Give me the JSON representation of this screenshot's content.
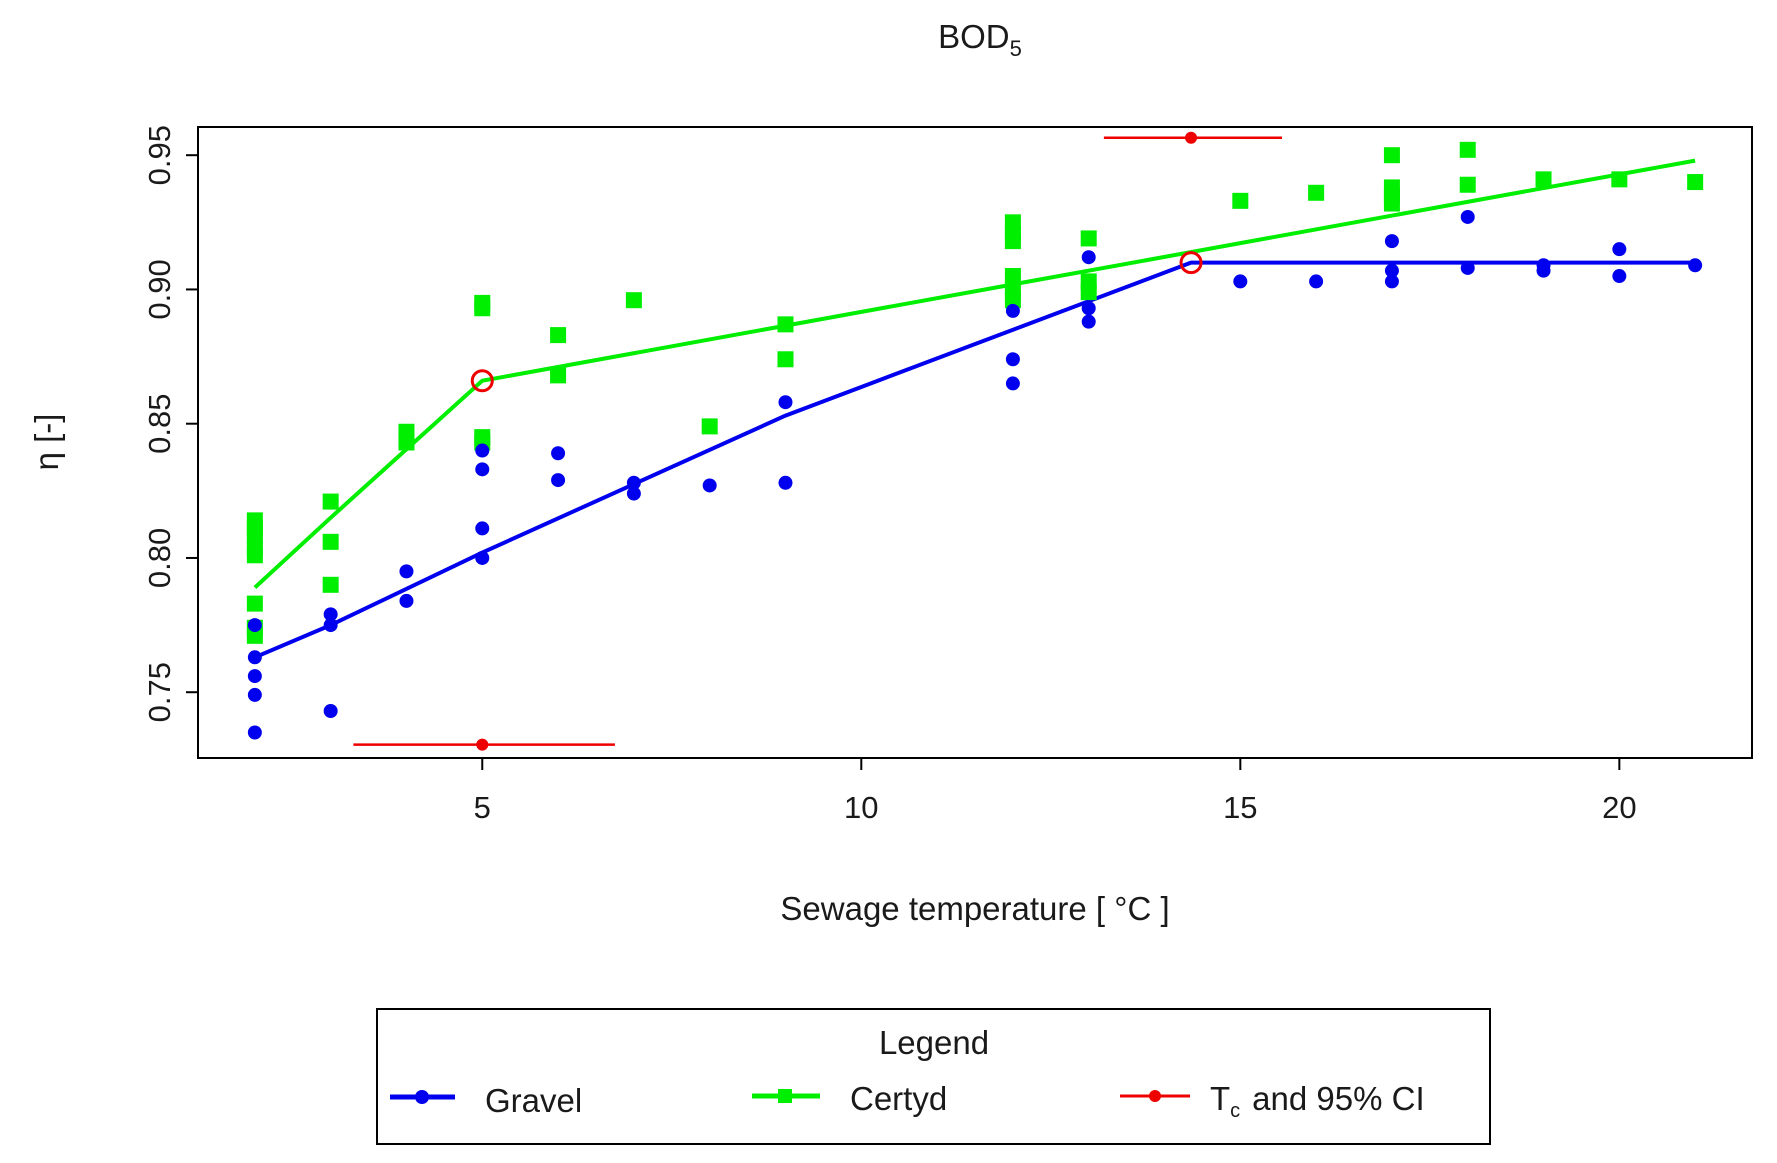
{
  "colors": {
    "gravel": "#0000ee",
    "certyd": "#00ee00",
    "tc": "#ee0000",
    "frame": "#000000"
  },
  "chart_data": {
    "type": "scatter",
    "title": "BOD",
    "title_sub": "5",
    "xlabel": "Sewage temperature [ °C ]",
    "ylabel": "η [-]",
    "xlim": [
      1.25,
      21.75
    ],
    "ylim": [
      0.7255,
      0.9605
    ],
    "x_ticks": [
      5,
      10,
      15,
      20
    ],
    "x_tick_labels": [
      "5",
      "10",
      "15",
      "20"
    ],
    "y_ticks": [
      0.75,
      0.8,
      0.85,
      0.9,
      0.95
    ],
    "y_tick_labels": [
      "0.75",
      "0.80",
      "0.85",
      "0.90",
      "0.95"
    ],
    "series": [
      {
        "name": "Gravel",
        "marker": "circle",
        "color": "#0000ee",
        "points": [
          [
            2,
            0.735
          ],
          [
            2,
            0.749
          ],
          [
            2,
            0.756
          ],
          [
            2,
            0.763
          ],
          [
            2,
            0.775
          ],
          [
            3,
            0.743
          ],
          [
            3,
            0.775
          ],
          [
            3,
            0.779
          ],
          [
            4,
            0.784
          ],
          [
            4,
            0.795
          ],
          [
            5,
            0.8
          ],
          [
            5,
            0.811
          ],
          [
            5,
            0.833
          ],
          [
            5,
            0.84
          ],
          [
            6,
            0.829
          ],
          [
            6,
            0.839
          ],
          [
            7,
            0.824
          ],
          [
            7,
            0.828
          ],
          [
            8,
            0.827
          ],
          [
            9,
            0.828
          ],
          [
            9,
            0.858
          ],
          [
            12,
            0.865
          ],
          [
            12,
            0.874
          ],
          [
            12,
            0.892
          ],
          [
            13,
            0.888
          ],
          [
            13,
            0.893
          ],
          [
            13,
            0.912
          ],
          [
            15,
            0.903
          ],
          [
            16,
            0.903
          ],
          [
            17,
            0.903
          ],
          [
            17,
            0.907
          ],
          [
            17,
            0.918
          ],
          [
            18,
            0.908
          ],
          [
            18,
            0.927
          ],
          [
            19,
            0.907
          ],
          [
            19,
            0.909
          ],
          [
            20,
            0.905
          ],
          [
            20,
            0.915
          ],
          [
            21,
            0.909
          ]
        ],
        "fit": [
          [
            2,
            0.763
          ],
          [
            3,
            0.775
          ],
          [
            5,
            0.802
          ],
          [
            9,
            0.853
          ],
          [
            14.35,
            0.91
          ],
          [
            21,
            0.91
          ]
        ]
      },
      {
        "name": "Certyd",
        "marker": "square",
        "color": "#00ee00",
        "points": [
          [
            2,
            0.771
          ],
          [
            2,
            0.774
          ],
          [
            2,
            0.783
          ],
          [
            2,
            0.801
          ],
          [
            2,
            0.804
          ],
          [
            2,
            0.808
          ],
          [
            2,
            0.811
          ],
          [
            2,
            0.814
          ],
          [
            3,
            0.79
          ],
          [
            3,
            0.806
          ],
          [
            3,
            0.821
          ],
          [
            4,
            0.843
          ],
          [
            4,
            0.847
          ],
          [
            5,
            0.843
          ],
          [
            5,
            0.845
          ],
          [
            5,
            0.893
          ],
          [
            5,
            0.895
          ],
          [
            6,
            0.868
          ],
          [
            6,
            0.883
          ],
          [
            7,
            0.896
          ],
          [
            8,
            0.849
          ],
          [
            9,
            0.874
          ],
          [
            9,
            0.887
          ],
          [
            12,
            0.896
          ],
          [
            12,
            0.9
          ],
          [
            12,
            0.905
          ],
          [
            12,
            0.918
          ],
          [
            12,
            0.921
          ],
          [
            12,
            0.925
          ],
          [
            13,
            0.899
          ],
          [
            13,
            0.903
          ],
          [
            13,
            0.919
          ],
          [
            15,
            0.933
          ],
          [
            16,
            0.936
          ],
          [
            17,
            0.932
          ],
          [
            17,
            0.935
          ],
          [
            17,
            0.938
          ],
          [
            17,
            0.95
          ],
          [
            18,
            0.939
          ],
          [
            18,
            0.952
          ],
          [
            19,
            0.941
          ],
          [
            20,
            0.941
          ],
          [
            21,
            0.94
          ]
        ],
        "fit": [
          [
            2,
            0.789
          ],
          [
            3,
            0.815
          ],
          [
            5,
            0.866
          ],
          [
            21,
            0.948
          ]
        ]
      }
    ],
    "breakpoints": [
      {
        "series": "Certyd",
        "tc": 5.0,
        "ci": [
          3.3,
          6.75
        ],
        "eta": 0.866,
        "ci_row_eta": 0.7305
      },
      {
        "series": "Gravel",
        "tc": 14.35,
        "ci": [
          13.2,
          15.55
        ],
        "eta": 0.91,
        "ci_row_eta": 0.9565
      }
    ],
    "legend": {
      "title": "Legend",
      "position": "bottom-center",
      "entries": [
        {
          "label": "Gravel",
          "marker": "circle",
          "color": "#0000ee"
        },
        {
          "label": "Certyd",
          "marker": "square",
          "color": "#00ee00"
        },
        {
          "label": "T",
          "label_sub": "c",
          "label_rest": "and 95% CI",
          "marker": "circle",
          "color": "#ee0000"
        }
      ]
    }
  }
}
